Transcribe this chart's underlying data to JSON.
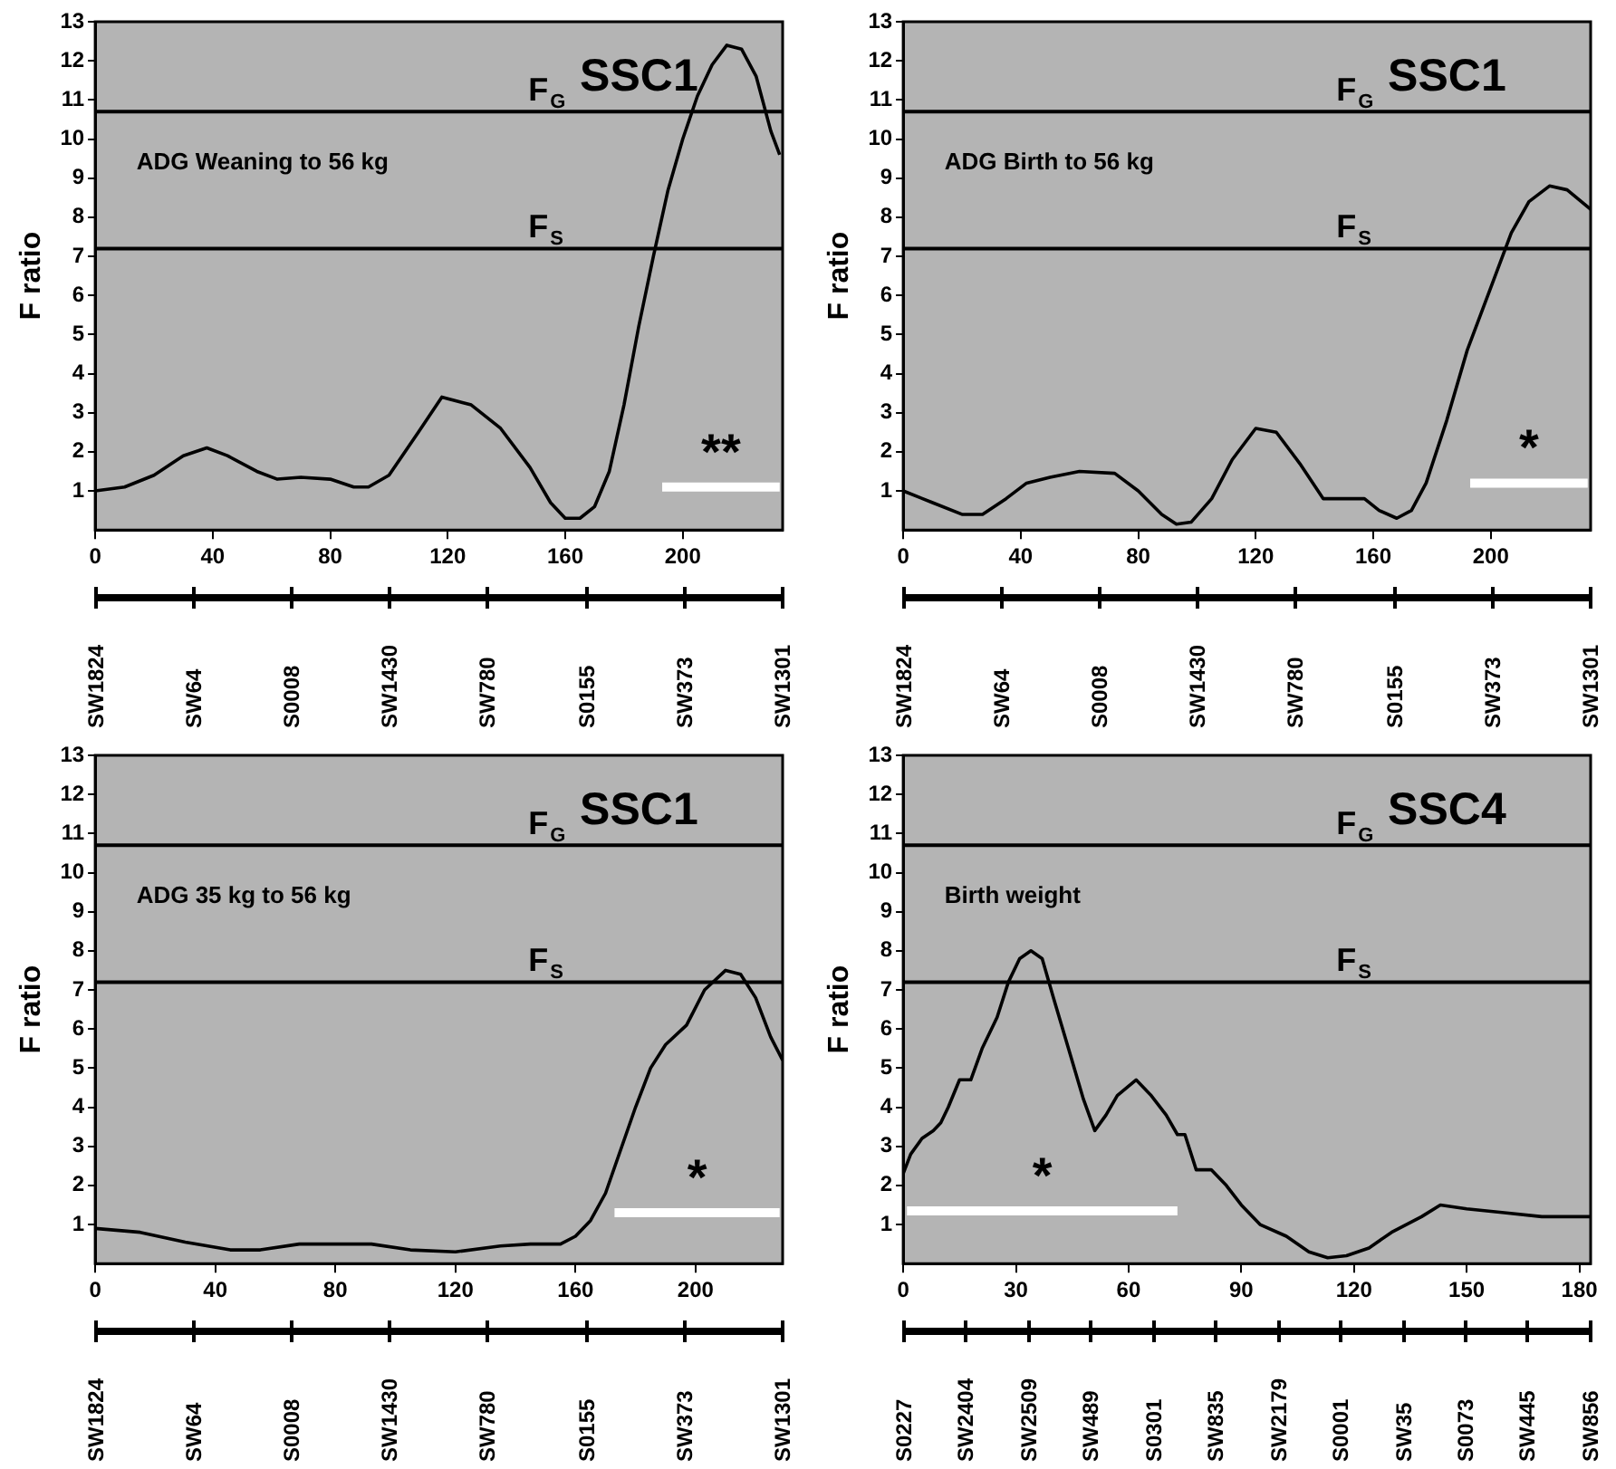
{
  "chart_data": [
    {
      "type": "line",
      "ylabel": "F ratio",
      "xlim": [
        0,
        234
      ],
      "xticks": [
        0,
        40,
        80,
        120,
        160,
        200
      ],
      "ylim": [
        0,
        13
      ],
      "yticks": [
        1,
        2,
        3,
        4,
        5,
        6,
        7,
        8,
        9,
        10,
        11,
        12,
        13
      ],
      "grid": false,
      "legend": false,
      "ref_lines": [
        {
          "axis": "y",
          "value": 10.7,
          "label": "F$_{G}$"
        },
        {
          "axis": "y",
          "value": 7.2,
          "label": "F$_{S}$"
        }
      ],
      "annotations": [
        "ADG Weaning to 56 kg",
        "SSC1",
        "**",
        "SW1824",
        "SW64",
        "S0008",
        "SW1430",
        "SW780",
        "S0155",
        "SW373",
        "SW1301"
      ],
      "series": [
        {
          "color": "#000000",
          "x": [
            0,
            10,
            20,
            30,
            38,
            45,
            55,
            62,
            70,
            80,
            88,
            93,
            100,
            110,
            118,
            128,
            138,
            148,
            155,
            160,
            165,
            170,
            175,
            180,
            185,
            190,
            195,
            200,
            205,
            210,
            215,
            220,
            225,
            230,
            233
          ],
          "values": [
            1.0,
            1.1,
            1.4,
            1.9,
            2.1,
            1.9,
            1.5,
            1.3,
            1.35,
            1.3,
            1.1,
            1.1,
            1.4,
            2.5,
            3.4,
            3.2,
            2.6,
            1.6,
            0.7,
            0.3,
            0.3,
            0.6,
            1.5,
            3.2,
            5.2,
            7.0,
            8.7,
            10.0,
            11.1,
            11.9,
            12.4,
            12.3,
            11.6,
            10.2,
            9.6
          ]
        },
        {
          "type": "line",
          "color": "#ffffff",
          "x": [
            193,
            233
          ],
          "values": [
            1.1,
            1.1
          ]
        }
      ]
    },
    {
      "type": "line",
      "ylabel": "F ratio",
      "xlim": [
        0,
        234
      ],
      "xticks": [
        0,
        40,
        80,
        120,
        160,
        200
      ],
      "ylim": [
        0,
        13
      ],
      "yticks": [
        1,
        2,
        3,
        4,
        5,
        6,
        7,
        8,
        9,
        10,
        11,
        12,
        13
      ],
      "grid": false,
      "legend": false,
      "ref_lines": [
        {
          "axis": "y",
          "value": 10.7,
          "label": "F$_{G}$"
        },
        {
          "axis": "y",
          "value": 7.2,
          "label": "F$_{S}$"
        }
      ],
      "annotations": [
        "ADG Birth to 56 kg",
        "SSC1",
        "*",
        "SW1824",
        "SW64",
        "S0008",
        "SW1430",
        "SW780",
        "S0155",
        "SW373",
        "SW1301"
      ],
      "series": [
        {
          "color": "#000000",
          "x": [
            0,
            10,
            20,
            27,
            35,
            42,
            50,
            60,
            72,
            80,
            88,
            93,
            98,
            105,
            112,
            120,
            127,
            135,
            143,
            150,
            157,
            162,
            168,
            173,
            178,
            185,
            192,
            200,
            207,
            213,
            220,
            226,
            234
          ],
          "values": [
            1.0,
            0.7,
            0.4,
            0.4,
            0.8,
            1.2,
            1.35,
            1.5,
            1.45,
            1.0,
            0.4,
            0.15,
            0.2,
            0.8,
            1.8,
            2.6,
            2.5,
            1.7,
            0.8,
            0.8,
            0.8,
            0.5,
            0.3,
            0.5,
            1.2,
            2.8,
            4.6,
            6.2,
            7.6,
            8.4,
            8.8,
            8.7,
            8.2
          ]
        },
        {
          "type": "line",
          "color": "#ffffff",
          "x": [
            193,
            233
          ],
          "values": [
            1.2,
            1.2
          ]
        }
      ]
    },
    {
      "type": "line",
      "ylabel": "F ratio",
      "xlim": [
        0,
        229
      ],
      "xticks": [
        0,
        40,
        80,
        120,
        160,
        200
      ],
      "ylim": [
        0,
        13
      ],
      "yticks": [
        1,
        2,
        3,
        4,
        5,
        6,
        7,
        8,
        9,
        10,
        11,
        12,
        13
      ],
      "grid": false,
      "legend": false,
      "ref_lines": [
        {
          "axis": "y",
          "value": 10.7,
          "label": "F$_{G}$"
        },
        {
          "axis": "y",
          "value": 7.2,
          "label": "F$_{S}$"
        }
      ],
      "annotations": [
        "ADG 35 kg to 56 kg",
        "SSC1",
        "*",
        "SW1824",
        "SW64",
        "S0008",
        "SW1430",
        "SW780",
        "S0155",
        "SW373",
        "SW1301"
      ],
      "series": [
        {
          "color": "#000000",
          "x": [
            0,
            15,
            30,
            45,
            55,
            68,
            80,
            92,
            105,
            120,
            135,
            145,
            155,
            160,
            165,
            170,
            175,
            180,
            185,
            190,
            197,
            203,
            210,
            215,
            220,
            225,
            229
          ],
          "values": [
            0.9,
            0.8,
            0.55,
            0.35,
            0.35,
            0.5,
            0.5,
            0.5,
            0.35,
            0.3,
            0.45,
            0.5,
            0.5,
            0.7,
            1.1,
            1.8,
            2.9,
            4.0,
            5.0,
            5.6,
            6.1,
            7.0,
            7.5,
            7.4,
            6.8,
            5.8,
            5.2
          ]
        },
        {
          "type": "line",
          "color": "#ffffff",
          "x": [
            173,
            228
          ],
          "values": [
            1.3,
            1.3
          ]
        }
      ]
    },
    {
      "type": "line",
      "ylabel": "F ratio",
      "xlim": [
        0,
        183
      ],
      "xticks": [
        0,
        30,
        60,
        90,
        120,
        150,
        180
      ],
      "ylim": [
        0,
        13
      ],
      "yticks": [
        1,
        2,
        3,
        4,
        5,
        6,
        7,
        8,
        9,
        10,
        11,
        12,
        13
      ],
      "grid": false,
      "legend": false,
      "ref_lines": [
        {
          "axis": "y",
          "value": 10.7,
          "label": "F$_{G}$"
        },
        {
          "axis": "y",
          "value": 7.2,
          "label": "F$_{S}$"
        }
      ],
      "annotations": [
        "Birth weight",
        "SSC4",
        "*",
        "S0227",
        "SW2404",
        "SW2509",
        "SW489",
        "S0301",
        "SW835",
        "SW2179",
        "S0001",
        "SW35",
        "S0073",
        "SW445",
        "SW856"
      ],
      "series": [
        {
          "color": "#000000",
          "x": [
            0,
            2,
            5,
            8,
            10,
            12,
            15,
            18,
            21,
            25,
            28,
            31,
            34,
            37,
            40,
            44,
            48,
            51,
            54,
            57,
            62,
            66,
            70,
            73,
            75,
            78,
            82,
            86,
            90,
            95,
            102,
            108,
            113,
            118,
            124,
            130,
            138,
            143,
            150,
            160,
            170,
            183
          ],
          "values": [
            2.3,
            2.8,
            3.2,
            3.4,
            3.6,
            4.0,
            4.7,
            4.7,
            5.5,
            6.3,
            7.2,
            7.8,
            8.0,
            7.8,
            6.8,
            5.5,
            4.2,
            3.4,
            3.8,
            4.3,
            4.7,
            4.3,
            3.8,
            3.3,
            3.3,
            2.4,
            2.4,
            2.0,
            1.5,
            1.0,
            0.7,
            0.3,
            0.15,
            0.2,
            0.4,
            0.8,
            1.2,
            1.5,
            1.4,
            1.3,
            1.2,
            1.2
          ]
        },
        {
          "type": "line",
          "color": "#ffffff",
          "x": [
            1,
            73
          ],
          "values": [
            1.35,
            1.35
          ]
        }
      ]
    }
  ]
}
